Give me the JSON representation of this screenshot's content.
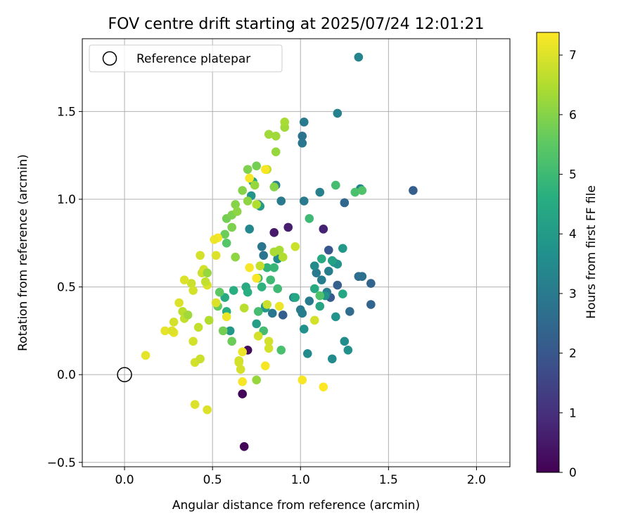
{
  "chart_data": {
    "type": "scatter",
    "title": "FOV centre drift starting at 2025/07/24 12:01:21",
    "xlabel": "Angular distance from reference (arcmin)",
    "ylabel": "Rotation from reference (arcmin)",
    "xlim": [
      -0.24,
      2.19
    ],
    "ylim": [
      -0.525,
      1.915
    ],
    "xticks": [
      0.0,
      0.5,
      1.0,
      1.5,
      2.0
    ],
    "xtick_labels": [
      "0.0",
      "0.5",
      "1.0",
      "1.5",
      "2.0"
    ],
    "yticks": [
      -0.5,
      0.0,
      0.5,
      1.0,
      1.5
    ],
    "ytick_labels": [
      "−0.5",
      "0.0",
      "0.5",
      "1.0",
      "1.5"
    ],
    "grid": true,
    "colormap": "viridis",
    "colorbar": {
      "label": "Hours from first FF file",
      "range": [
        0,
        7.38
      ],
      "ticks": [
        0,
        1,
        2,
        3,
        4,
        5,
        6,
        7
      ],
      "tick_labels": [
        "0",
        "1",
        "2",
        "3",
        "4",
        "5",
        "6",
        "7"
      ]
    },
    "legend": {
      "position": "top-left",
      "entries": [
        {
          "label": "Reference platepar",
          "marker": "hollow-circle"
        }
      ]
    },
    "reference_point": {
      "x": 0.0,
      "y": 0.0
    },
    "points": [
      {
        "x": 0.68,
        "y": -0.41,
        "c": 0.1
      },
      {
        "x": 0.67,
        "y": -0.11,
        "c": 0.1
      },
      {
        "x": 0.7,
        "y": 0.14,
        "c": 0.2
      },
      {
        "x": 0.85,
        "y": 0.81,
        "c": 0.5
      },
      {
        "x": 0.93,
        "y": 0.84,
        "c": 0.6
      },
      {
        "x": 1.13,
        "y": 0.83,
        "c": 0.7
      },
      {
        "x": 1.64,
        "y": 1.05,
        "c": 2.2
      },
      {
        "x": 1.4,
        "y": 0.52,
        "c": 2.4
      },
      {
        "x": 1.4,
        "y": 0.4,
        "c": 2.4
      },
      {
        "x": 1.25,
        "y": 0.98,
        "c": 2.5
      },
      {
        "x": 1.21,
        "y": 0.51,
        "c": 2.3
      },
      {
        "x": 1.16,
        "y": 0.71,
        "c": 2.0
      },
      {
        "x": 1.17,
        "y": 0.44,
        "c": 2.1
      },
      {
        "x": 0.9,
        "y": 0.34,
        "c": 2.2
      },
      {
        "x": 1.28,
        "y": 0.36,
        "c": 2.6
      },
      {
        "x": 1.33,
        "y": 0.56,
        "c": 2.6
      },
      {
        "x": 1.35,
        "y": 0.56,
        "c": 2.7
      },
      {
        "x": 1.01,
        "y": 1.36,
        "c": 2.8
      },
      {
        "x": 1.01,
        "y": 1.32,
        "c": 2.9
      },
      {
        "x": 1.02,
        "y": 1.44,
        "c": 3.0
      },
      {
        "x": 0.89,
        "y": 0.99,
        "c": 3.0
      },
      {
        "x": 1.02,
        "y": 0.99,
        "c": 3.0
      },
      {
        "x": 0.78,
        "y": 0.73,
        "c": 2.9
      },
      {
        "x": 0.79,
        "y": 0.68,
        "c": 2.8
      },
      {
        "x": 0.84,
        "y": 0.35,
        "c": 2.9
      },
      {
        "x": 1.05,
        "y": 0.42,
        "c": 3.0
      },
      {
        "x": 1.0,
        "y": 0.37,
        "c": 3.0
      },
      {
        "x": 1.01,
        "y": 0.35,
        "c": 3.1
      },
      {
        "x": 1.09,
        "y": 0.58,
        "c": 3.0
      },
      {
        "x": 1.12,
        "y": 0.54,
        "c": 3.1
      },
      {
        "x": 1.15,
        "y": 0.47,
        "c": 3.1
      },
      {
        "x": 1.16,
        "y": 0.59,
        "c": 3.1
      },
      {
        "x": 1.21,
        "y": 1.49,
        "c": 3.2
      },
      {
        "x": 1.33,
        "y": 1.81,
        "c": 3.3
      },
      {
        "x": 1.34,
        "y": 1.06,
        "c": 3.3
      },
      {
        "x": 1.11,
        "y": 1.04,
        "c": 3.2
      },
      {
        "x": 0.86,
        "y": 1.08,
        "c": 3.3
      },
      {
        "x": 0.76,
        "y": 0.97,
        "c": 3.4
      },
      {
        "x": 0.71,
        "y": 0.83,
        "c": 3.4
      },
      {
        "x": 0.87,
        "y": 0.66,
        "c": 3.5
      },
      {
        "x": 0.96,
        "y": 0.44,
        "c": 3.5
      },
      {
        "x": 1.08,
        "y": 0.62,
        "c": 3.5
      },
      {
        "x": 1.04,
        "y": 0.12,
        "c": 3.5
      },
      {
        "x": 1.18,
        "y": 0.09,
        "c": 3.5
      },
      {
        "x": 1.25,
        "y": 0.19,
        "c": 3.6
      },
      {
        "x": 1.27,
        "y": 0.14,
        "c": 3.7
      },
      {
        "x": 1.2,
        "y": 0.33,
        "c": 3.8
      },
      {
        "x": 1.21,
        "y": 0.63,
        "c": 3.8
      },
      {
        "x": 1.24,
        "y": 0.72,
        "c": 3.9
      },
      {
        "x": 1.19,
        "y": 0.64,
        "c": 3.8
      },
      {
        "x": 1.14,
        "y": 0.45,
        "c": 3.8
      },
      {
        "x": 1.02,
        "y": 0.26,
        "c": 3.7
      },
      {
        "x": 0.8,
        "y": 0.38,
        "c": 3.9
      },
      {
        "x": 0.8,
        "y": 0.39,
        "c": 4.0
      },
      {
        "x": 0.6,
        "y": 0.25,
        "c": 3.9
      },
      {
        "x": 0.75,
        "y": 0.29,
        "c": 4.1
      },
      {
        "x": 0.73,
        "y": 1.1,
        "c": 4.2
      },
      {
        "x": 0.72,
        "y": 1.02,
        "c": 3.8
      },
      {
        "x": 0.77,
        "y": 0.96,
        "c": 4.0
      },
      {
        "x": 1.18,
        "y": 0.65,
        "c": 4.2
      },
      {
        "x": 1.11,
        "y": 0.39,
        "c": 4.3
      },
      {
        "x": 1.24,
        "y": 0.46,
        "c": 4.4
      },
      {
        "x": 1.12,
        "y": 0.66,
        "c": 4.5
      },
      {
        "x": 1.08,
        "y": 0.49,
        "c": 4.5
      },
      {
        "x": 0.97,
        "y": 0.44,
        "c": 4.4
      },
      {
        "x": 0.69,
        "y": 0.5,
        "c": 4.5
      },
      {
        "x": 0.7,
        "y": 0.47,
        "c": 4.6
      },
      {
        "x": 0.62,
        "y": 0.48,
        "c": 4.6
      },
      {
        "x": 0.57,
        "y": 0.44,
        "c": 4.5
      },
      {
        "x": 0.58,
        "y": 0.36,
        "c": 4.6
      },
      {
        "x": 0.78,
        "y": 0.5,
        "c": 4.7
      },
      {
        "x": 0.81,
        "y": 0.61,
        "c": 4.8
      },
      {
        "x": 0.85,
        "y": 0.61,
        "c": 4.9
      },
      {
        "x": 0.87,
        "y": 0.49,
        "c": 5.0
      },
      {
        "x": 0.83,
        "y": 0.54,
        "c": 5.0
      },
      {
        "x": 0.76,
        "y": 0.55,
        "c": 5.0
      },
      {
        "x": 0.79,
        "y": 0.25,
        "c": 5.1
      },
      {
        "x": 0.76,
        "y": 0.36,
        "c": 5.1
      },
      {
        "x": 0.89,
        "y": 0.14,
        "c": 5.2
      },
      {
        "x": 1.05,
        "y": 0.89,
        "c": 5.0
      },
      {
        "x": 1.2,
        "y": 1.08,
        "c": 5.1
      },
      {
        "x": 1.31,
        "y": 1.04,
        "c": 5.2
      },
      {
        "x": 1.35,
        "y": 1.05,
        "c": 5.3
      },
      {
        "x": 1.11,
        "y": 0.45,
        "c": 5.3
      },
      {
        "x": 0.61,
        "y": 0.19,
        "c": 5.7
      },
      {
        "x": 0.56,
        "y": 0.25,
        "c": 5.8
      },
      {
        "x": 0.63,
        "y": 0.67,
        "c": 6.1
      },
      {
        "x": 0.53,
        "y": 0.39,
        "c": 5.6
      },
      {
        "x": 0.54,
        "y": 0.47,
        "c": 5.5
      },
      {
        "x": 0.58,
        "y": 0.75,
        "c": 5.4
      },
      {
        "x": 0.57,
        "y": 0.8,
        "c": 5.7
      },
      {
        "x": 0.58,
        "y": 0.89,
        "c": 5.8
      },
      {
        "x": 0.61,
        "y": 0.91,
        "c": 5.9
      },
      {
        "x": 0.61,
        "y": 0.84,
        "c": 5.9
      },
      {
        "x": 0.63,
        "y": 0.97,
        "c": 6.0
      },
      {
        "x": 0.64,
        "y": 0.93,
        "c": 6.1
      },
      {
        "x": 0.67,
        "y": 1.05,
        "c": 6.0
      },
      {
        "x": 0.7,
        "y": 0.99,
        "c": 6.1
      },
      {
        "x": 0.7,
        "y": 1.17,
        "c": 5.9
      },
      {
        "x": 0.75,
        "y": 1.19,
        "c": 5.8
      },
      {
        "x": 0.74,
        "y": 1.08,
        "c": 6.2
      },
      {
        "x": 0.85,
        "y": 1.07,
        "c": 6.0
      },
      {
        "x": 0.82,
        "y": 1.37,
        "c": 6.3
      },
      {
        "x": 0.86,
        "y": 1.36,
        "c": 6.3
      },
      {
        "x": 0.91,
        "y": 1.41,
        "c": 6.3
      },
      {
        "x": 0.91,
        "y": 1.44,
        "c": 6.4
      },
      {
        "x": 0.86,
        "y": 1.27,
        "c": 6.2
      },
      {
        "x": 0.75,
        "y": 0.97,
        "c": 6.5
      },
      {
        "x": 0.81,
        "y": 1.17,
        "c": 6.6
      },
      {
        "x": 0.77,
        "y": 0.62,
        "c": 6.7
      },
      {
        "x": 0.85,
        "y": 0.7,
        "c": 6.4
      },
      {
        "x": 0.88,
        "y": 0.71,
        "c": 6.4
      },
      {
        "x": 0.9,
        "y": 0.67,
        "c": 6.5
      },
      {
        "x": 0.97,
        "y": 0.73,
        "c": 6.8
      },
      {
        "x": 0.68,
        "y": 0.38,
        "c": 6.6
      },
      {
        "x": 0.81,
        "y": 0.4,
        "c": 6.8
      },
      {
        "x": 0.88,
        "y": 0.39,
        "c": 7.2
      },
      {
        "x": 0.82,
        "y": 0.15,
        "c": 6.9
      },
      {
        "x": 0.82,
        "y": 0.19,
        "c": 6.9
      },
      {
        "x": 0.76,
        "y": 0.22,
        "c": 6.9
      },
      {
        "x": 0.75,
        "y": -0.03,
        "c": 6.2
      },
      {
        "x": 0.65,
        "y": 0.08,
        "c": 6.9
      },
      {
        "x": 0.65,
        "y": 0.07,
        "c": 6.9
      },
      {
        "x": 0.66,
        "y": 0.03,
        "c": 6.9
      },
      {
        "x": 0.67,
        "y": -0.04,
        "c": 7.3
      },
      {
        "x": 0.8,
        "y": 0.05,
        "c": 7.3
      },
      {
        "x": 1.01,
        "y": -0.03,
        "c": 7.3
      },
      {
        "x": 1.13,
        "y": -0.07,
        "c": 7.4
      },
      {
        "x": 1.08,
        "y": 0.31,
        "c": 6.9
      },
      {
        "x": 0.47,
        "y": -0.2,
        "c": 7.0
      },
      {
        "x": 0.4,
        "y": -0.17,
        "c": 7.0
      },
      {
        "x": 0.4,
        "y": 0.07,
        "c": 6.9
      },
      {
        "x": 0.43,
        "y": 0.09,
        "c": 6.8
      },
      {
        "x": 0.39,
        "y": 0.19,
        "c": 6.9
      },
      {
        "x": 0.42,
        "y": 0.27,
        "c": 6.7
      },
      {
        "x": 0.48,
        "y": 0.31,
        "c": 6.5
      },
      {
        "x": 0.58,
        "y": 0.33,
        "c": 7.2
      },
      {
        "x": 0.52,
        "y": 0.41,
        "c": 7.0
      },
      {
        "x": 0.47,
        "y": 0.51,
        "c": 7.0
      },
      {
        "x": 0.44,
        "y": 0.58,
        "c": 6.8
      },
      {
        "x": 0.45,
        "y": 0.6,
        "c": 6.9
      },
      {
        "x": 0.43,
        "y": 0.68,
        "c": 6.9
      },
      {
        "x": 0.52,
        "y": 0.68,
        "c": 7.0
      },
      {
        "x": 0.53,
        "y": 0.78,
        "c": 7.3
      },
      {
        "x": 0.51,
        "y": 0.77,
        "c": 7.2
      },
      {
        "x": 0.47,
        "y": 0.58,
        "c": 6.2
      },
      {
        "x": 0.46,
        "y": 0.53,
        "c": 6.7
      },
      {
        "x": 0.38,
        "y": 0.52,
        "c": 6.8
      },
      {
        "x": 0.39,
        "y": 0.48,
        "c": 6.9
      },
      {
        "x": 0.34,
        "y": 0.54,
        "c": 7.0
      },
      {
        "x": 0.33,
        "y": 0.36,
        "c": 6.6
      },
      {
        "x": 0.34,
        "y": 0.32,
        "c": 6.7
      },
      {
        "x": 0.36,
        "y": 0.34,
        "c": 6.3
      },
      {
        "x": 0.28,
        "y": 0.3,
        "c": 6.9
      },
      {
        "x": 0.31,
        "y": 0.41,
        "c": 7.0
      },
      {
        "x": 0.23,
        "y": 0.25,
        "c": 7.1
      },
      {
        "x": 0.28,
        "y": 0.24,
        "c": 7.1
      },
      {
        "x": 0.27,
        "y": 0.25,
        "c": 7.0
      },
      {
        "x": 0.12,
        "y": 0.11,
        "c": 7.1
      },
      {
        "x": 0.67,
        "y": 0.13,
        "c": 7.2
      },
      {
        "x": 0.71,
        "y": 0.61,
        "c": 7.3
      },
      {
        "x": 0.75,
        "y": 0.55,
        "c": 7.3
      },
      {
        "x": 0.71,
        "y": 1.12,
        "c": 7.3
      },
      {
        "x": 0.8,
        "y": 1.17,
        "c": 7.3
      }
    ]
  }
}
